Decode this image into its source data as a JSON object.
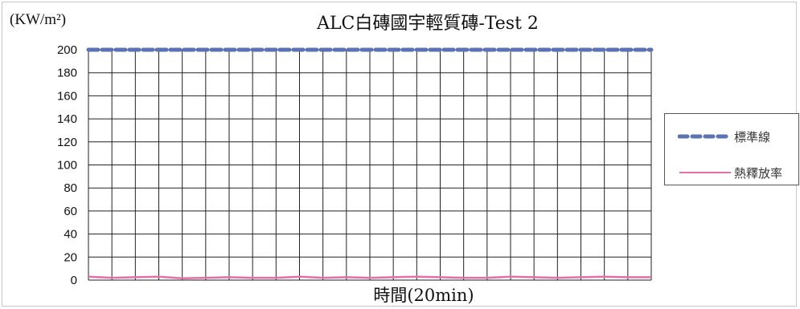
{
  "chart_data": {
    "type": "line",
    "title": "ALC白磚國宇輕質磚-Test 2",
    "ylabel": "(KW/m²)",
    "xlabel": "時間(20min)",
    "ylim": [
      0,
      200
    ],
    "yticks": [
      0,
      20,
      40,
      60,
      80,
      100,
      120,
      140,
      160,
      180,
      200
    ],
    "ytick_labels": [
      "0",
      "20",
      "40",
      "60",
      "80",
      "100",
      "120",
      "140",
      "160",
      "180",
      "200"
    ],
    "x_categories": 24,
    "grid": true,
    "legend_position": "right",
    "series": [
      {
        "name": "標準線",
        "style": "dashed",
        "color": "#5b72b4",
        "values": [
          200,
          200,
          200,
          200,
          200,
          200,
          200,
          200,
          200,
          200,
          200,
          200,
          200,
          200,
          200,
          200,
          200,
          200,
          200,
          200,
          200,
          200,
          200,
          200,
          200
        ]
      },
      {
        "name": "熱釋放率",
        "style": "solid",
        "color": "#e26fa8",
        "values": [
          3,
          2,
          2.5,
          3,
          1.5,
          2,
          2.5,
          2,
          2,
          3,
          2,
          2.5,
          2,
          2.5,
          3,
          2.5,
          2,
          2,
          3,
          2.5,
          2,
          2.5,
          3,
          2.5,
          2.5
        ]
      }
    ]
  }
}
